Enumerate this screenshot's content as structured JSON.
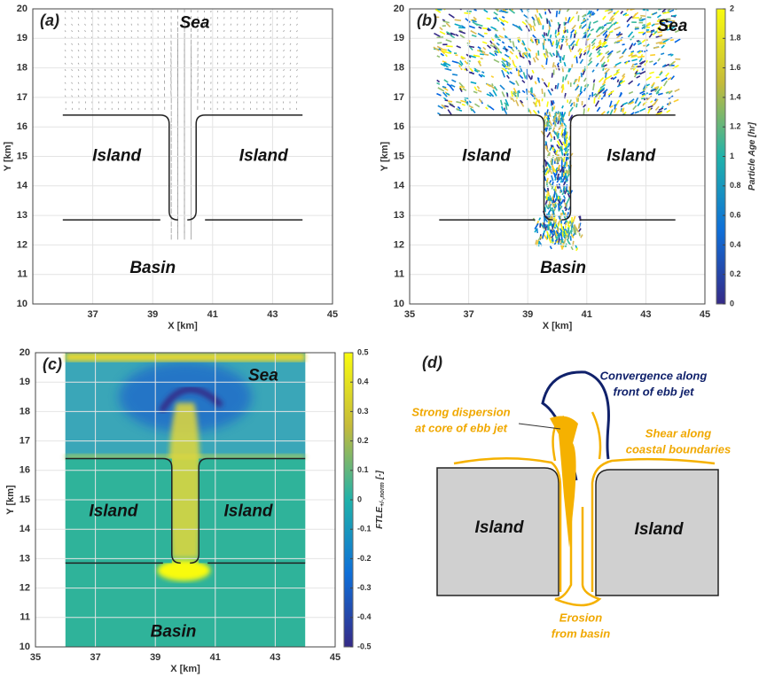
{
  "chart_data": [
    {
      "type": "quiver",
      "panel": "(a)",
      "xlabel": "X [km]",
      "ylabel": "Y [km]",
      "xlim": [
        35,
        45
      ],
      "ylim": [
        10,
        20
      ],
      "xticks": [
        37,
        39,
        41,
        43,
        45
      ],
      "yticks": [
        10,
        11,
        12,
        13,
        14,
        15,
        16,
        17,
        18,
        19,
        20
      ],
      "labels": [
        "Sea",
        "Island",
        "Island",
        "Basin"
      ],
      "color": "#9a9a9a"
    },
    {
      "type": "particles",
      "panel": "(b)",
      "xlabel": "X [km]",
      "ylabel": "Y [km]",
      "xlim": [
        35,
        45
      ],
      "ylim": [
        10,
        20
      ],
      "xticks": [
        35,
        37,
        39,
        41,
        43,
        45
      ],
      "yticks": [
        10,
        11,
        12,
        13,
        14,
        15,
        16,
        17,
        18,
        19,
        20
      ],
      "labels": [
        "Sea",
        "Island",
        "Island",
        "Basin"
      ],
      "colorbar": {
        "label": "Particle Age [hr]",
        "clim": [
          0,
          2
        ],
        "cticks": [
          0,
          0.2,
          0.4,
          0.6,
          0.8,
          1,
          1.2,
          1.4,
          1.6,
          1.8,
          2
        ]
      }
    },
    {
      "type": "heatmap",
      "panel": "(c)",
      "xlabel": "X [km]",
      "ylabel": "Y [km]",
      "xlim": [
        35,
        45
      ],
      "ylim": [
        10,
        20
      ],
      "xticks": [
        35,
        37,
        39,
        41,
        43,
        45
      ],
      "yticks": [
        10,
        11,
        12,
        13,
        14,
        15,
        16,
        17,
        18,
        19,
        20
      ],
      "labels": [
        "Sea",
        "Island",
        "Island",
        "Basin"
      ],
      "colorbar": {
        "label": "FTLE",
        "label_sub": "+/-,norm",
        "label_unit": "[-]",
        "clim": [
          -0.5,
          0.5
        ],
        "cticks": [
          -0.5,
          -0.4,
          -0.3,
          -0.2,
          -0.1,
          0,
          0.1,
          0.2,
          0.3,
          0.4,
          0.5
        ]
      }
    }
  ],
  "schematic": {
    "panel": "(d)",
    "islands": [
      "Island",
      "Island"
    ],
    "convergence": [
      "Convergence along",
      "front of ebb jet"
    ],
    "dispersion": [
      "Strong dispersion",
      "at core of ebb jet"
    ],
    "shear": [
      "Shear along",
      "coastal boundaries"
    ],
    "erosion": [
      "Erosion",
      "from basin"
    ]
  }
}
